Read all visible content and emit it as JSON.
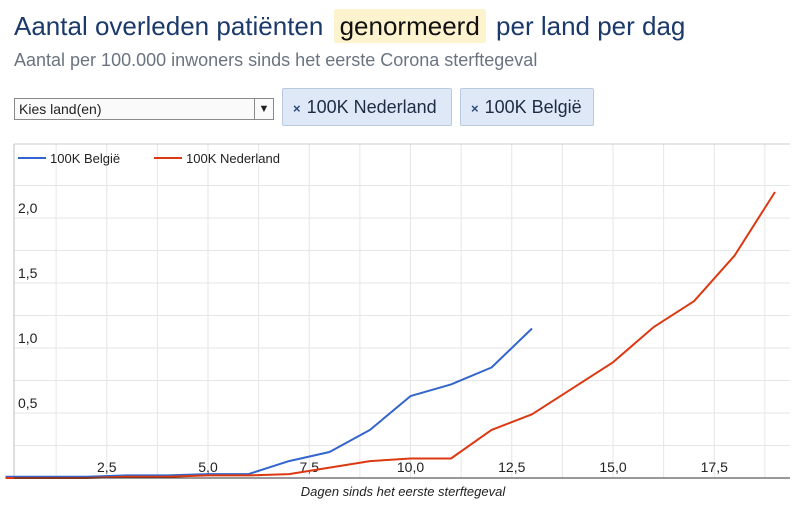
{
  "header": {
    "title_before": "Aantal overleden patiënten",
    "title_highlight": "genormeerd",
    "title_after": "per land per dag",
    "subtitle": "Aantal per 100.000 inwoners sinds het eerste Corona sterftegeval"
  },
  "controls": {
    "country_select_value": "Kies land(en)",
    "chips": [
      {
        "remove": "×",
        "label": "100K Nederland"
      },
      {
        "remove": "×",
        "label": "100K België"
      }
    ]
  },
  "chart_data": {
    "type": "line",
    "title": "",
    "xlabel": "Dagen sinds het eerste sterftegeval",
    "ylabel": "",
    "xlim": [
      0,
      19.5
    ],
    "ylim": [
      0,
      2.4
    ],
    "x_ticks": [
      "2,5",
      "5,0",
      "7,5",
      "10,0",
      "12,5",
      "15,0",
      "17,5"
    ],
    "y_ticks": [
      "0,5",
      "1,0",
      "1,5",
      "2,0"
    ],
    "legend_position": "top-left",
    "grid": true,
    "series": [
      {
        "name": "100K België",
        "color": "#3366cc",
        "x": [
          0,
          1,
          2,
          3,
          4,
          5,
          6,
          7,
          8,
          9,
          10,
          11,
          12,
          13
        ],
        "y": [
          0.01,
          0.01,
          0.01,
          0.02,
          0.02,
          0.03,
          0.03,
          0.13,
          0.2,
          0.37,
          0.63,
          0.72,
          0.85,
          1.15
        ]
      },
      {
        "name": "100K Nederland",
        "color": "#dc3912",
        "x": [
          0,
          1,
          2,
          3,
          4,
          5,
          6,
          7,
          8,
          9,
          10,
          11,
          12,
          13,
          14,
          15,
          16,
          17,
          18,
          19
        ],
        "y": [
          0.0,
          0.0,
          0.0,
          0.01,
          0.01,
          0.02,
          0.02,
          0.03,
          0.08,
          0.13,
          0.15,
          0.15,
          0.37,
          0.49,
          0.69,
          0.89,
          1.16,
          1.36,
          1.71,
          2.2
        ]
      }
    ]
  }
}
